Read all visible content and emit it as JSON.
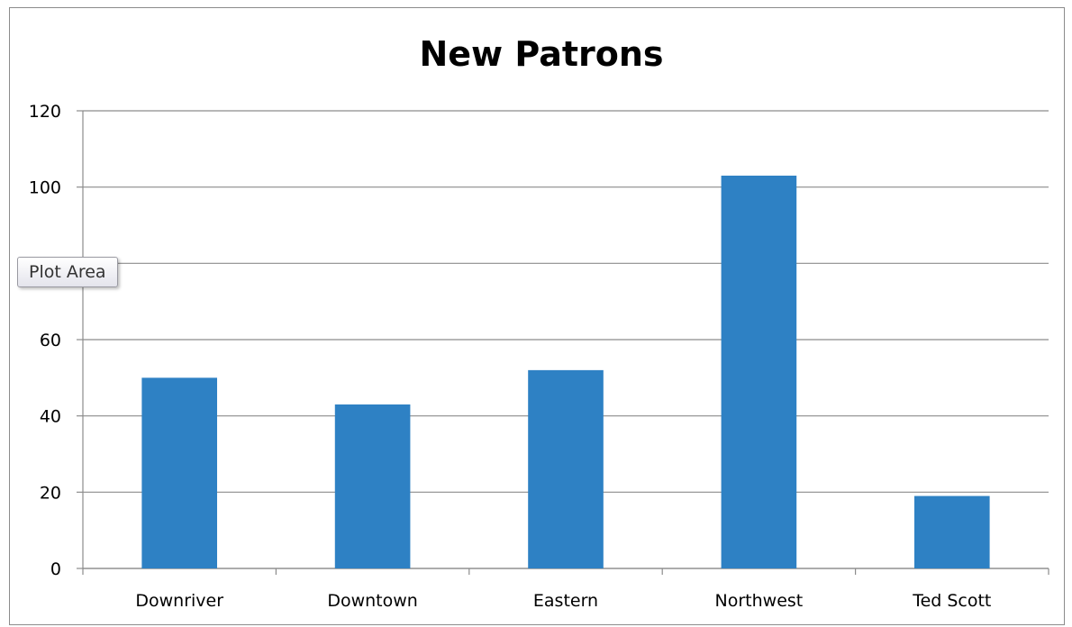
{
  "chart_data": {
    "type": "bar",
    "title": "New Patrons",
    "categories": [
      "Downriver",
      "Downtown",
      "Eastern",
      "Northwest",
      "Ted Scott"
    ],
    "values": [
      50,
      43,
      52,
      103,
      19
    ],
    "ylim": [
      0,
      120
    ],
    "yticks": [
      0,
      20,
      40,
      60,
      80,
      100,
      120
    ],
    "xlabel": "",
    "ylabel": "",
    "grid": true,
    "legend": "none",
    "bar_color": "#2e81c4",
    "gridline_color": "#8c8c8c"
  },
  "tooltip": {
    "label": "Plot Area"
  }
}
